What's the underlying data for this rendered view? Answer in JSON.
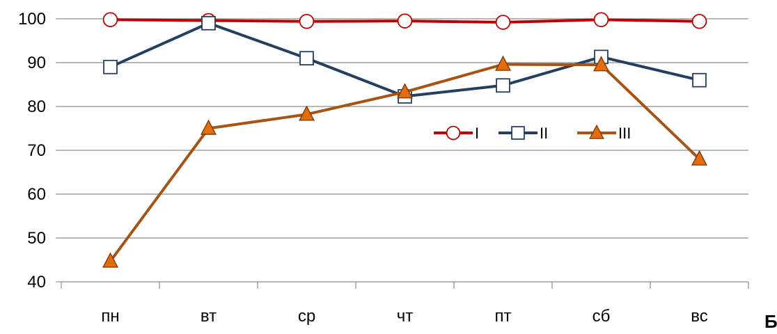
{
  "chart_data": {
    "type": "line",
    "categories": [
      "пн",
      "вт",
      "ср",
      "чт",
      "пт",
      "сб",
      "вс"
    ],
    "series": [
      {
        "name": "I",
        "values": [
          99.8,
          99.6,
          99.4,
          99.5,
          99.2,
          99.8,
          99.4
        ],
        "color": "#c00000",
        "marker": "circle"
      },
      {
        "name": "II",
        "values": [
          89.0,
          99.0,
          91.0,
          82.3,
          84.8,
          91.3,
          86.0
        ],
        "color": "#243f60",
        "marker": "square"
      },
      {
        "name": "III",
        "values": [
          44.7,
          75.0,
          78.2,
          83.3,
          89.6,
          89.5,
          68.0
        ],
        "color": "#a65314",
        "marker": "triangle"
      }
    ],
    "y_ticks": [
      40,
      50,
      60,
      70,
      80,
      90,
      100
    ],
    "ylim": [
      40,
      100
    ],
    "grid": "horizontal",
    "legend_position": "center-right",
    "corner_label": "Б",
    "colors": {
      "grid": "#8c8c8c",
      "marker_fill_I": "#ffffff",
      "marker_fill_II": "#ffffff",
      "marker_fill_III": "#e46c0a"
    }
  }
}
